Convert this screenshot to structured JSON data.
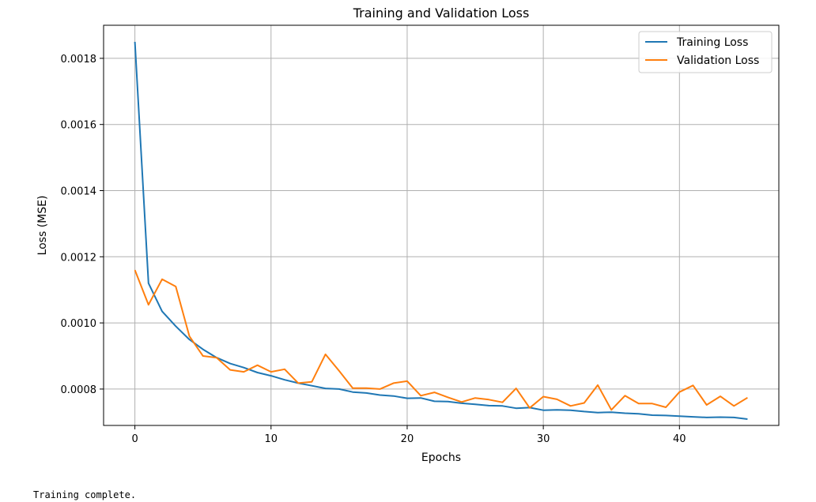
{
  "chart_data": {
    "type": "line",
    "title": "Training and Validation Loss",
    "xlabel": "Epochs",
    "ylabel": "Loss (MSE)",
    "xlim": [
      -2.3,
      47.3
    ],
    "ylim": [
      0.00069,
      0.0019
    ],
    "xticks": [
      0,
      10,
      20,
      30,
      40
    ],
    "xtick_labels": [
      "0",
      "10",
      "20",
      "30",
      "40"
    ],
    "yticks": [
      0.0008,
      0.001,
      0.0012,
      0.0014,
      0.0016,
      0.0018
    ],
    "ytick_labels": [
      "0.0008",
      "0.0010",
      "0.0012",
      "0.0014",
      "0.0016",
      "0.0018"
    ],
    "grid": true,
    "legend_position": "top-right",
    "x": [
      0,
      1,
      2,
      3,
      4,
      5,
      6,
      7,
      8,
      9,
      10,
      11,
      12,
      13,
      14,
      15,
      16,
      17,
      18,
      19,
      20,
      21,
      22,
      23,
      24,
      25,
      26,
      27,
      28,
      29,
      30,
      31,
      32,
      33,
      34,
      35,
      36,
      37,
      38,
      39,
      40,
      41,
      42,
      43,
      44,
      45
    ],
    "series": [
      {
        "name": "Training Loss",
        "color": "#1f77b4",
        "values": [
          0.00185,
          0.00112,
          0.001035,
          0.00099,
          0.00095,
          0.00092,
          0.000895,
          0.000877,
          0.000865,
          0.00085,
          0.00084,
          0.000828,
          0.000818,
          0.00081,
          0.000802,
          0.0008,
          0.000791,
          0.000788,
          0.000782,
          0.000779,
          0.000772,
          0.000773,
          0.000763,
          0.000762,
          0.000757,
          0.000754,
          0.00075,
          0.000749,
          0.000742,
          0.000744,
          0.000736,
          0.000737,
          0.000736,
          0.000732,
          0.000729,
          0.00073,
          0.000727,
          0.000725,
          0.000721,
          0.00072,
          0.000718,
          0.000716,
          0.000714,
          0.000715,
          0.000714,
          0.000709
        ]
      },
      {
        "name": "Validation Loss",
        "color": "#ff7f0e",
        "values": [
          0.00116,
          0.001055,
          0.001132,
          0.00111,
          0.00096,
          0.0009,
          0.000895,
          0.000858,
          0.000852,
          0.000872,
          0.000852,
          0.00086,
          0.000818,
          0.000822,
          0.000905,
          0.000855,
          0.000803,
          0.000803,
          0.0008,
          0.000818,
          0.000824,
          0.00078,
          0.00079,
          0.000775,
          0.000761,
          0.000773,
          0.000768,
          0.00076,
          0.000802,
          0.000743,
          0.000777,
          0.000769,
          0.000749,
          0.000758,
          0.000812,
          0.000737,
          0.00078,
          0.000756,
          0.000756,
          0.000745,
          0.000791,
          0.000811,
          0.000752,
          0.000778,
          0.000749,
          0.000774
        ]
      }
    ]
  },
  "output_text": "Training complete."
}
